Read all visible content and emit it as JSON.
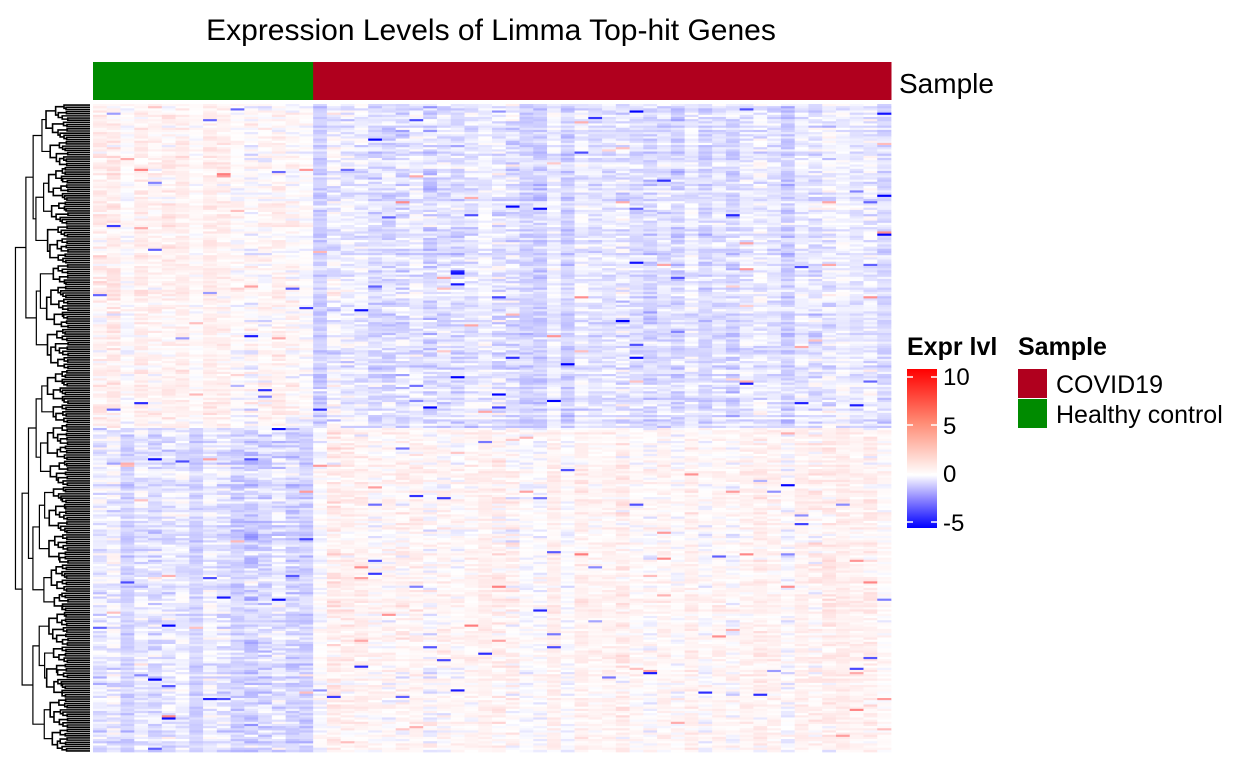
{
  "chart_data": {
    "type": "heatmap",
    "title": "Expression Levels of Limma Top-hit Genes",
    "annotation_track": {
      "label": "Sample",
      "groups": [
        {
          "name": "Healthy control",
          "n_samples": 16,
          "color": "#008B00"
        },
        {
          "name": "COVID19",
          "n_samples": 42,
          "color": "#B0001E"
        }
      ]
    },
    "n_genes_approx": 300,
    "row_dendrogram": true,
    "color_scale": {
      "title": "Expr lvl",
      "ticks": [
        "10",
        "5",
        "0",
        "-5"
      ],
      "range": [
        -5,
        10
      ],
      "stops": [
        {
          "value": -5,
          "color": "#0000FF"
        },
        {
          "value": 0,
          "color": "#FFFFFF"
        },
        {
          "value": 10,
          "color": "#FF0000"
        }
      ]
    },
    "legend": {
      "title": "Sample",
      "entries": [
        {
          "label": "COVID19",
          "color": "#B0001E"
        },
        {
          "label": "Healthy control",
          "color": "#008B00"
        }
      ],
      "placement": "right"
    }
  }
}
